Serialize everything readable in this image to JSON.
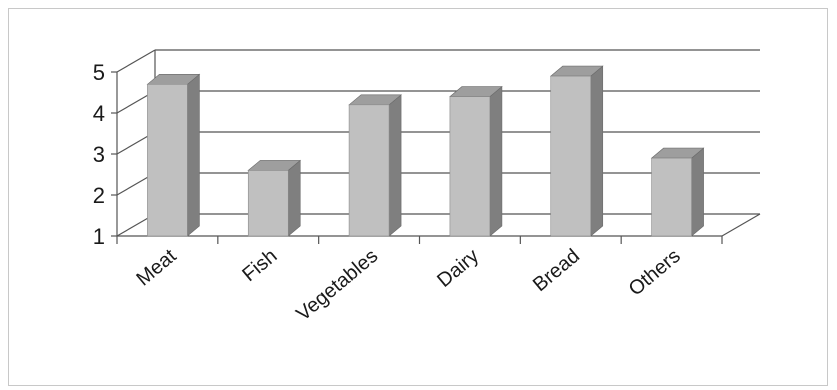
{
  "chart_data": {
    "type": "bar",
    "title": "",
    "xlabel": "",
    "ylabel": "",
    "categories": [
      "Meat",
      "Fish",
      "Vegetables",
      "Dairy",
      "Bread",
      "Others"
    ],
    "values": [
      4.7,
      2.6,
      4.2,
      4.4,
      4.9,
      2.9
    ],
    "ylim": [
      1,
      5
    ],
    "yticks": [
      "1",
      "2",
      "3",
      "4",
      "5"
    ],
    "grid": true,
    "legend": "none",
    "style": "3d-column",
    "colors": {
      "front": "#c0c0c0",
      "side": "#7f7f7f",
      "top": "#9e9e9e",
      "grid": "#555555",
      "frame": "#c8c8c8"
    }
  }
}
